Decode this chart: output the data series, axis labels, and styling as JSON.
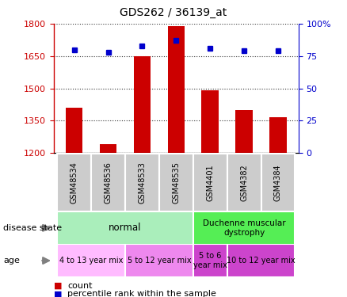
{
  "title": "GDS262 / 36139_at",
  "samples": [
    "GSM48534",
    "GSM48536",
    "GSM48533",
    "GSM48535",
    "GSM4401",
    "GSM4382",
    "GSM4384"
  ],
  "counts": [
    1410,
    1240,
    1650,
    1790,
    1490,
    1400,
    1365
  ],
  "percentiles": [
    80,
    78,
    83,
    87,
    81,
    79,
    79
  ],
  "ylim": [
    1200,
    1800
  ],
  "yticks": [
    1200,
    1350,
    1500,
    1650,
    1800
  ],
  "y2lim": [
    0,
    100
  ],
  "y2ticks": [
    0,
    25,
    50,
    75,
    100
  ],
  "bar_color": "#cc0000",
  "dot_color": "#0000cc",
  "disease_state_normal_color": "#aaeebb",
  "disease_state_dmd_color": "#55ee55",
  "age_color_1": "#ffbbff",
  "age_color_2": "#ee88ee",
  "age_color_3": "#cc44cc",
  "age_color_4": "#cc44cc",
  "left_axis_color": "#cc0000",
  "right_axis_color": "#0000cc",
  "tick_bg_color": "#cccccc"
}
